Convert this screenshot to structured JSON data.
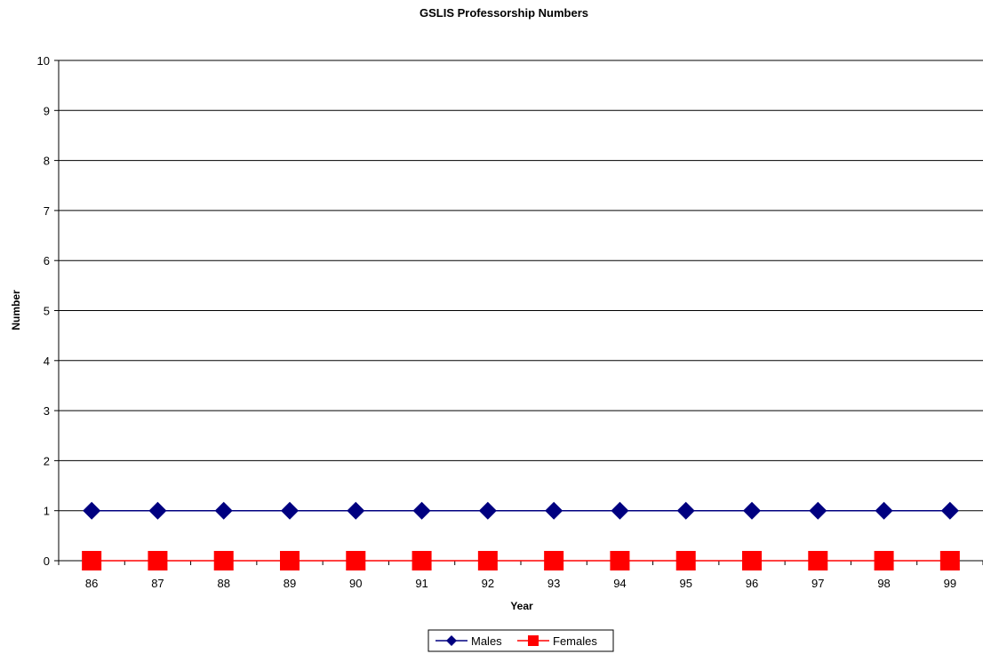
{
  "chart_data": {
    "type": "line",
    "title": "GSLIS Professorship Numbers",
    "xlabel": "Year",
    "ylabel": "Number",
    "categories": [
      "86",
      "87",
      "88",
      "89",
      "90",
      "91",
      "92",
      "93",
      "94",
      "95",
      "96",
      "97",
      "98",
      "99"
    ],
    "series": [
      {
        "name": "Males",
        "values": [
          1,
          1,
          1,
          1,
          1,
          1,
          1,
          1,
          1,
          1,
          1,
          1,
          1,
          1
        ],
        "color": "#000080",
        "marker": "diamond"
      },
      {
        "name": "Females",
        "values": [
          0,
          0,
          0,
          0,
          0,
          0,
          0,
          0,
          0,
          0,
          0,
          0,
          0,
          0
        ],
        "color": "#ff0000",
        "marker": "square"
      }
    ],
    "ylim": [
      0,
      10
    ],
    "yticks": [
      "0",
      "1",
      "2",
      "3",
      "4",
      "5",
      "6",
      "7",
      "8",
      "9",
      "10"
    ],
    "grid": true,
    "legend_position": "bottom"
  }
}
